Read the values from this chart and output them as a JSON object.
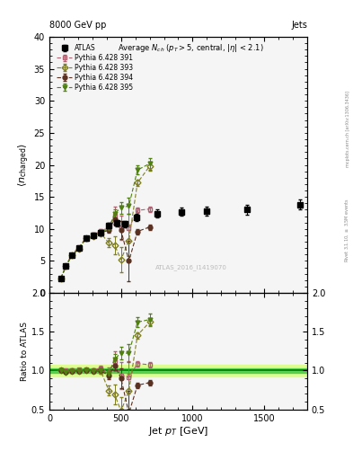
{
  "atlas_x": [
    80,
    115,
    155,
    205,
    255,
    310,
    360,
    415,
    470,
    530,
    610,
    750,
    920,
    1100,
    1380,
    1750
  ],
  "atlas_y": [
    2.3,
    4.2,
    5.9,
    7.0,
    8.5,
    9.0,
    9.4,
    10.5,
    10.9,
    10.8,
    11.8,
    12.4,
    12.7,
    12.8,
    13.0,
    13.8
  ],
  "atlas_yerr": [
    0.15,
    0.15,
    0.2,
    0.25,
    0.3,
    0.35,
    0.4,
    0.45,
    0.5,
    0.5,
    0.55,
    0.6,
    0.65,
    0.7,
    0.75,
    0.8
  ],
  "p391_x": [
    80,
    115,
    155,
    205,
    255,
    310,
    360,
    415,
    455,
    500,
    555,
    615,
    700
  ],
  "p391_y": [
    2.3,
    4.2,
    5.95,
    7.1,
    8.6,
    9.1,
    9.7,
    10.2,
    12.1,
    10.2,
    10.1,
    12.9,
    13.1
  ],
  "p391_yerr": [
    0.05,
    0.08,
    0.1,
    0.12,
    0.15,
    0.2,
    0.3,
    0.7,
    1.4,
    1.9,
    2.3,
    0.4,
    0.4
  ],
  "p391_color": "#b06070",
  "p391_mfc": "none",
  "p391_marker": "s",
  "p391_label": "Pythia 6.428 391",
  "p393_x": [
    80,
    115,
    155,
    205,
    255,
    310,
    360,
    415,
    455,
    500,
    555,
    615,
    700
  ],
  "p393_y": [
    2.3,
    4.15,
    5.85,
    6.95,
    8.5,
    8.9,
    9.3,
    7.8,
    7.5,
    5.2,
    8.2,
    17.2,
    19.8
  ],
  "p393_yerr": [
    0.05,
    0.08,
    0.1,
    0.12,
    0.15,
    0.2,
    0.3,
    0.7,
    1.4,
    1.9,
    2.5,
    0.5,
    0.7
  ],
  "p393_color": "#808020",
  "p393_mfc": "none",
  "p393_marker": "D",
  "p393_label": "Pythia 6.428 393",
  "p394_x": [
    80,
    115,
    155,
    205,
    255,
    310,
    360,
    415,
    455,
    500,
    555,
    615,
    700
  ],
  "p394_y": [
    2.3,
    4.15,
    5.85,
    6.95,
    8.5,
    8.9,
    9.4,
    9.8,
    11.5,
    9.8,
    5.0,
    9.6,
    10.3
  ],
  "p394_yerr": [
    0.05,
    0.08,
    0.1,
    0.12,
    0.15,
    0.2,
    0.3,
    0.45,
    0.7,
    1.4,
    3.2,
    0.4,
    0.4
  ],
  "p394_color": "#5a3020",
  "p394_mfc": "#5a3020",
  "p394_marker": "o",
  "p394_label": "Pythia 6.428 394",
  "p395_x": [
    80,
    115,
    155,
    205,
    255,
    310,
    360,
    415,
    455,
    500,
    555,
    615,
    700
  ],
  "p395_y": [
    2.3,
    4.15,
    5.85,
    6.95,
    8.5,
    8.9,
    9.4,
    10.1,
    12.4,
    13.3,
    13.6,
    19.2,
    20.2
  ],
  "p395_yerr": [
    0.05,
    0.08,
    0.1,
    0.12,
    0.15,
    0.2,
    0.3,
    0.45,
    0.7,
    0.9,
    1.3,
    0.7,
    0.9
  ],
  "p395_color": "#508010",
  "p395_mfc": "#508010",
  "p395_marker": "v",
  "p395_label": "Pythia 6.428 395",
  "xlim": [
    0,
    1800
  ],
  "ylim_main": [
    0,
    40
  ],
  "ylim_ratio": [
    0.5,
    2.0
  ],
  "bg_color": "#f5f5f5",
  "green_band": [
    0.97,
    1.03
  ],
  "yellow_band": [
    0.93,
    1.07
  ]
}
